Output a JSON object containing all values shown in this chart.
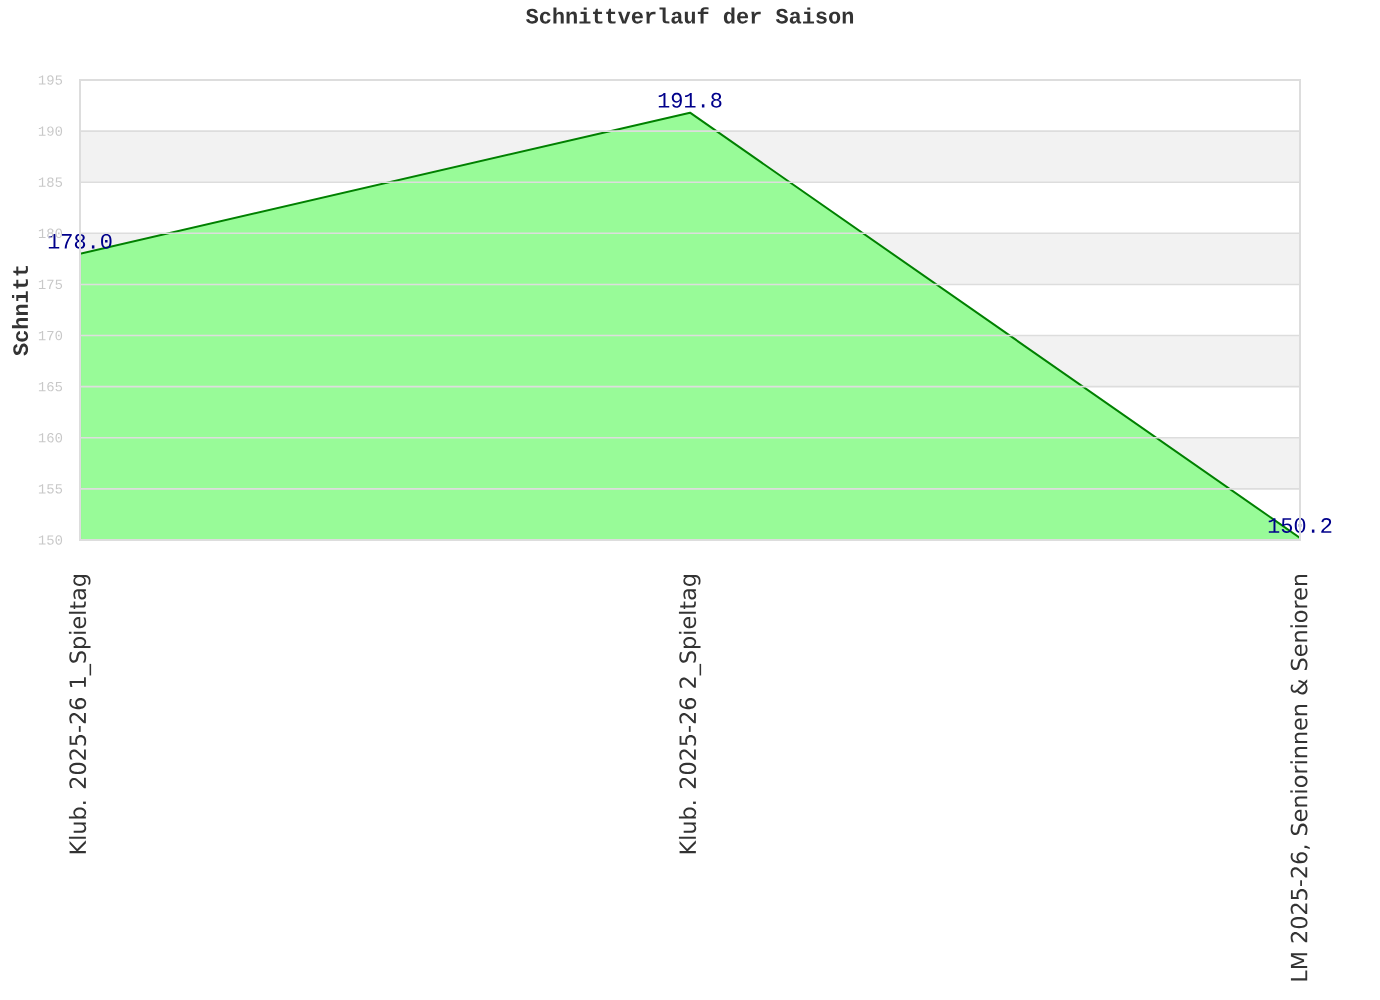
{
  "chart_data": {
    "type": "area",
    "title": "Schnittverlauf der Saison",
    "ylabel": "Schnitt",
    "categories": [
      "Klub. 2025-26  1_Spieltag",
      "Klub. 2025-26  2_Spieltag",
      "LM 2025-26, Seniorinnen & Senioren"
    ],
    "series": [
      {
        "color": "#98fb98",
        "values": [
          178.0,
          191.8,
          150.2
        ],
        "value_labels": [
          "178.0",
          "191.8",
          "150.2"
        ]
      }
    ],
    "ylim": [
      150,
      195
    ],
    "yticks": [
      150,
      155,
      160,
      165,
      170,
      175,
      180,
      185,
      190,
      195
    ],
    "grid": "y"
  }
}
